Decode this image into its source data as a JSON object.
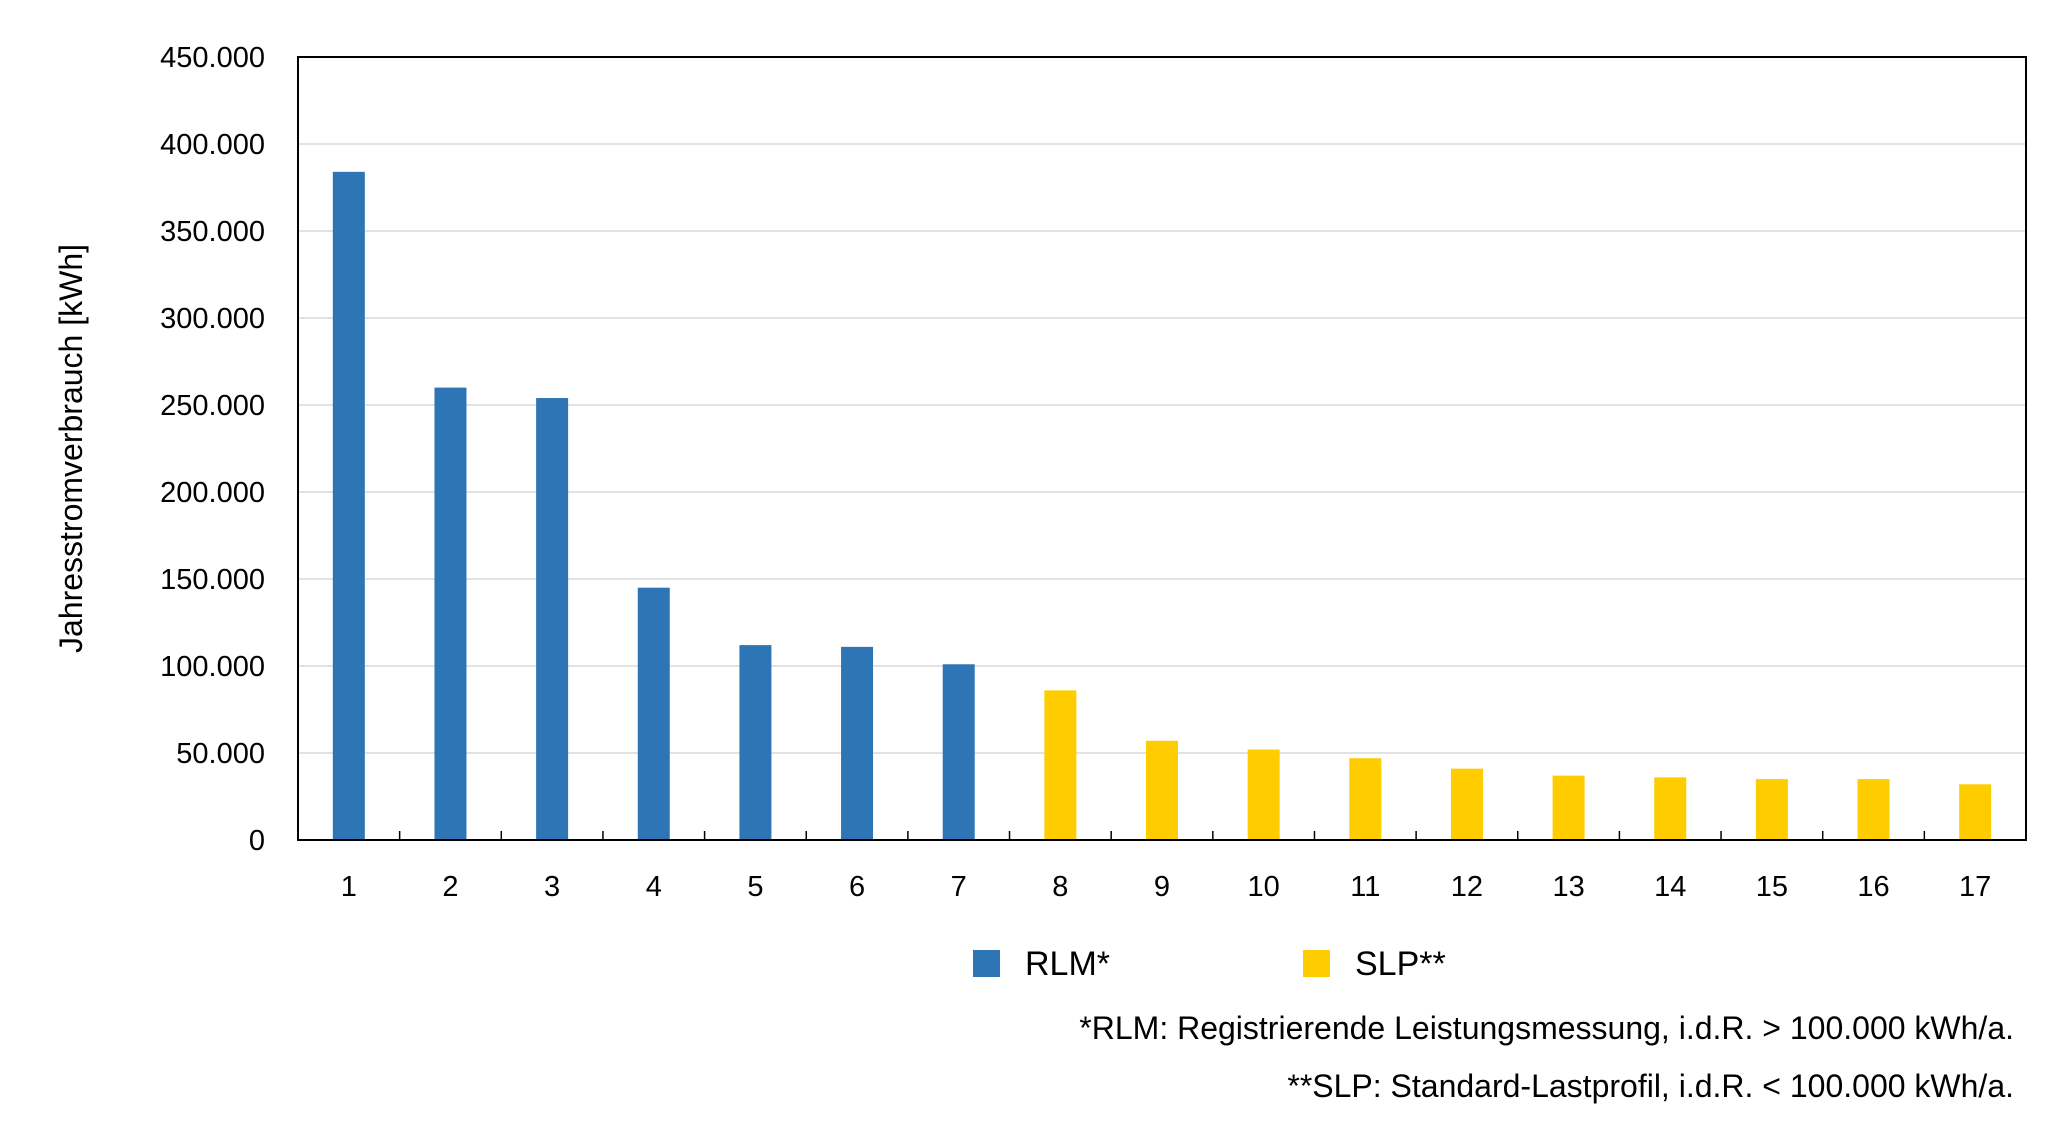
{
  "chart_data": {
    "type": "bar",
    "title": "",
    "ylabel": "Jahresstromverbrauch [kWh]",
    "xlabel": "",
    "ylim": [
      0,
      450000
    ],
    "ytick_values": [
      0,
      50000,
      100000,
      150000,
      200000,
      250000,
      300000,
      350000,
      400000,
      450000
    ],
    "ytick_labels": [
      "0",
      "50.000",
      "100.000",
      "150.000",
      "200.000",
      "250.000",
      "300.000",
      "350.000",
      "400.000",
      "450.000"
    ],
    "categories": [
      "1",
      "2",
      "3",
      "4",
      "5",
      "6",
      "7",
      "8",
      "9",
      "10",
      "11",
      "12",
      "13",
      "14",
      "15",
      "16",
      "17"
    ],
    "values": [
      384000,
      260000,
      254000,
      145000,
      112000,
      111000,
      101000,
      86000,
      57000,
      52000,
      47000,
      41000,
      37000,
      36000,
      35000,
      35000,
      32000
    ],
    "groups": [
      "RLM",
      "RLM",
      "RLM",
      "RLM",
      "RLM",
      "RLM",
      "RLM",
      "SLP",
      "SLP",
      "SLP",
      "SLP",
      "SLP",
      "SLP",
      "SLP",
      "SLP",
      "SLP",
      "SLP"
    ],
    "legend": [
      {
        "key": "RLM",
        "label": "RLM*",
        "color": "#2E75B6"
      },
      {
        "key": "SLP",
        "label": "SLP**",
        "color": "#FFCC00"
      }
    ],
    "legend_position": "bottom",
    "grid": true
  },
  "footnotes": {
    "rlm": "*RLM: Registrierende Leistungsmessung, i.d.R. > 100.000 kWh/a.",
    "slp": "**SLP: Standard-Lastprofil, i.d.R. < 100.000 kWh/a."
  }
}
